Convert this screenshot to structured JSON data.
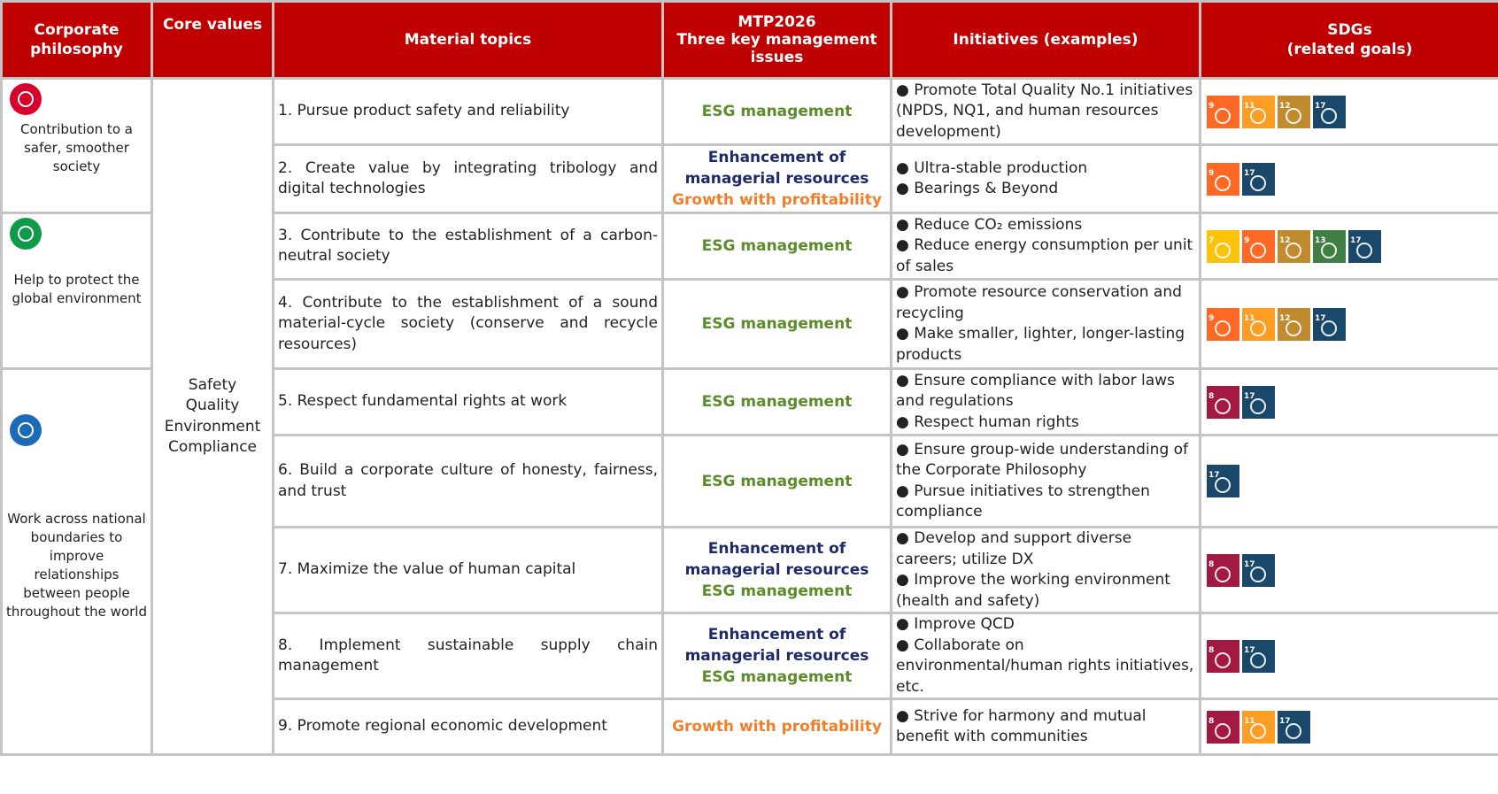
{
  "colors": {
    "header_bg": "#c00000",
    "esg": "#5b8c2a",
    "enhancement": "#1f2a6b",
    "growth": "#f07f2a",
    "sdg": {
      "7": "#FCC30B",
      "8": "#A21942",
      "9": "#FD6925",
      "11": "#FD9D24",
      "12": "#BF8B2E",
      "13": "#3F7E44",
      "17": "#19486A"
    }
  },
  "headers": [
    "Corporate philosophy",
    "Core values",
    "Material topics",
    "MTP2026\nThree key management issues",
    "Initiatives (examples)",
    "SDGs\n(related goals)"
  ],
  "philosophy": [
    {
      "text": "Contribution to a safer, smoother society",
      "icon": "city-icon",
      "color": "#d7002b",
      "rows": 2
    },
    {
      "text": "Help to protect the global environment",
      "icon": "globe-hands-icon",
      "color": "#0e9a48",
      "rows": 2
    },
    {
      "text": "Work across national boundaries to improve relationships between people throughout the world",
      "icon": "people-network-icon",
      "color": "#1b6bb8",
      "rows": 5
    }
  ],
  "core_values": [
    "Safety",
    "Quality",
    "Environment",
    "Compliance"
  ],
  "rows": [
    {
      "topic": "1. Pursue product safety and reliability",
      "mtp": [
        [
          "esg",
          "ESG management"
        ]
      ],
      "initiatives": [
        "● Promote Total Quality No.1 initiatives (NPDS, NQ1, and human resources development)"
      ],
      "sdgs": [
        9,
        11,
        12,
        17
      ]
    },
    {
      "topic": "2.  Create value by integrating tribology and digital technologies",
      "mtp": [
        [
          "enhancement",
          "Enhancement of managerial resources"
        ],
        [
          "growth",
          "Growth with profitability"
        ]
      ],
      "initiatives": [
        "● Ultra-stable production",
        "● Bearings & Beyond"
      ],
      "sdgs": [
        9,
        17
      ]
    },
    {
      "topic": "3.  Contribute to the establishment of a carbon-neutral society",
      "mtp": [
        [
          "esg",
          "ESG management"
        ]
      ],
      "initiatives": [
        "● Reduce CO₂ emissions",
        "● Reduce energy consumption per unit of sales"
      ],
      "sdgs": [
        7,
        9,
        12,
        13,
        17
      ]
    },
    {
      "topic": "4.  Contribute to the establishment of a sound material-cycle society (conserve and recycle resources)",
      "mtp": [
        [
          "esg",
          "ESG management"
        ]
      ],
      "initiatives": [
        "● Promote resource conservation and recycling",
        "● Make smaller, lighter, longer-lasting products"
      ],
      "sdgs": [
        9,
        11,
        12,
        17
      ]
    },
    {
      "topic": "5.  Respect fundamental rights at work",
      "mtp": [
        [
          "esg",
          "ESG management"
        ]
      ],
      "initiatives": [
        "● Ensure compliance with labor laws and regulations",
        "● Respect human rights"
      ],
      "sdgs": [
        8,
        17
      ]
    },
    {
      "topic": "6.  Build a corporate culture of honesty, fairness, and trust",
      "mtp": [
        [
          "esg",
          "ESG management"
        ]
      ],
      "initiatives": [
        "● Ensure group-wide understanding of the Corporate Philosophy",
        "● Pursue initiatives to strengthen compliance"
      ],
      "sdgs": [
        17
      ]
    },
    {
      "topic": "7.  Maximize the value of human capital",
      "mtp": [
        [
          "enhancement",
          "Enhancement of managerial resources"
        ],
        [
          "esg",
          "ESG management"
        ]
      ],
      "initiatives": [
        "● Develop and support diverse careers; utilize DX",
        "● Improve the working environment (health and safety)"
      ],
      "sdgs": [
        8,
        17
      ]
    },
    {
      "topic": "8.  Implement sustainable supply chain management",
      "mtp": [
        [
          "enhancement",
          "Enhancement of managerial resources"
        ],
        [
          "esg",
          "ESG management"
        ]
      ],
      "initiatives": [
        "● Improve QCD",
        "● Collaborate on environmental/human rights initiatives, etc."
      ],
      "sdgs": [
        8,
        17
      ]
    },
    {
      "topic": "9.  Promote regional economic development",
      "mtp": [
        [
          "growth",
          "Growth with profitability"
        ]
      ],
      "initiatives": [
        "● Strive for harmony and mutual benefit with communities"
      ],
      "sdgs": [
        8,
        11,
        17
      ]
    }
  ]
}
